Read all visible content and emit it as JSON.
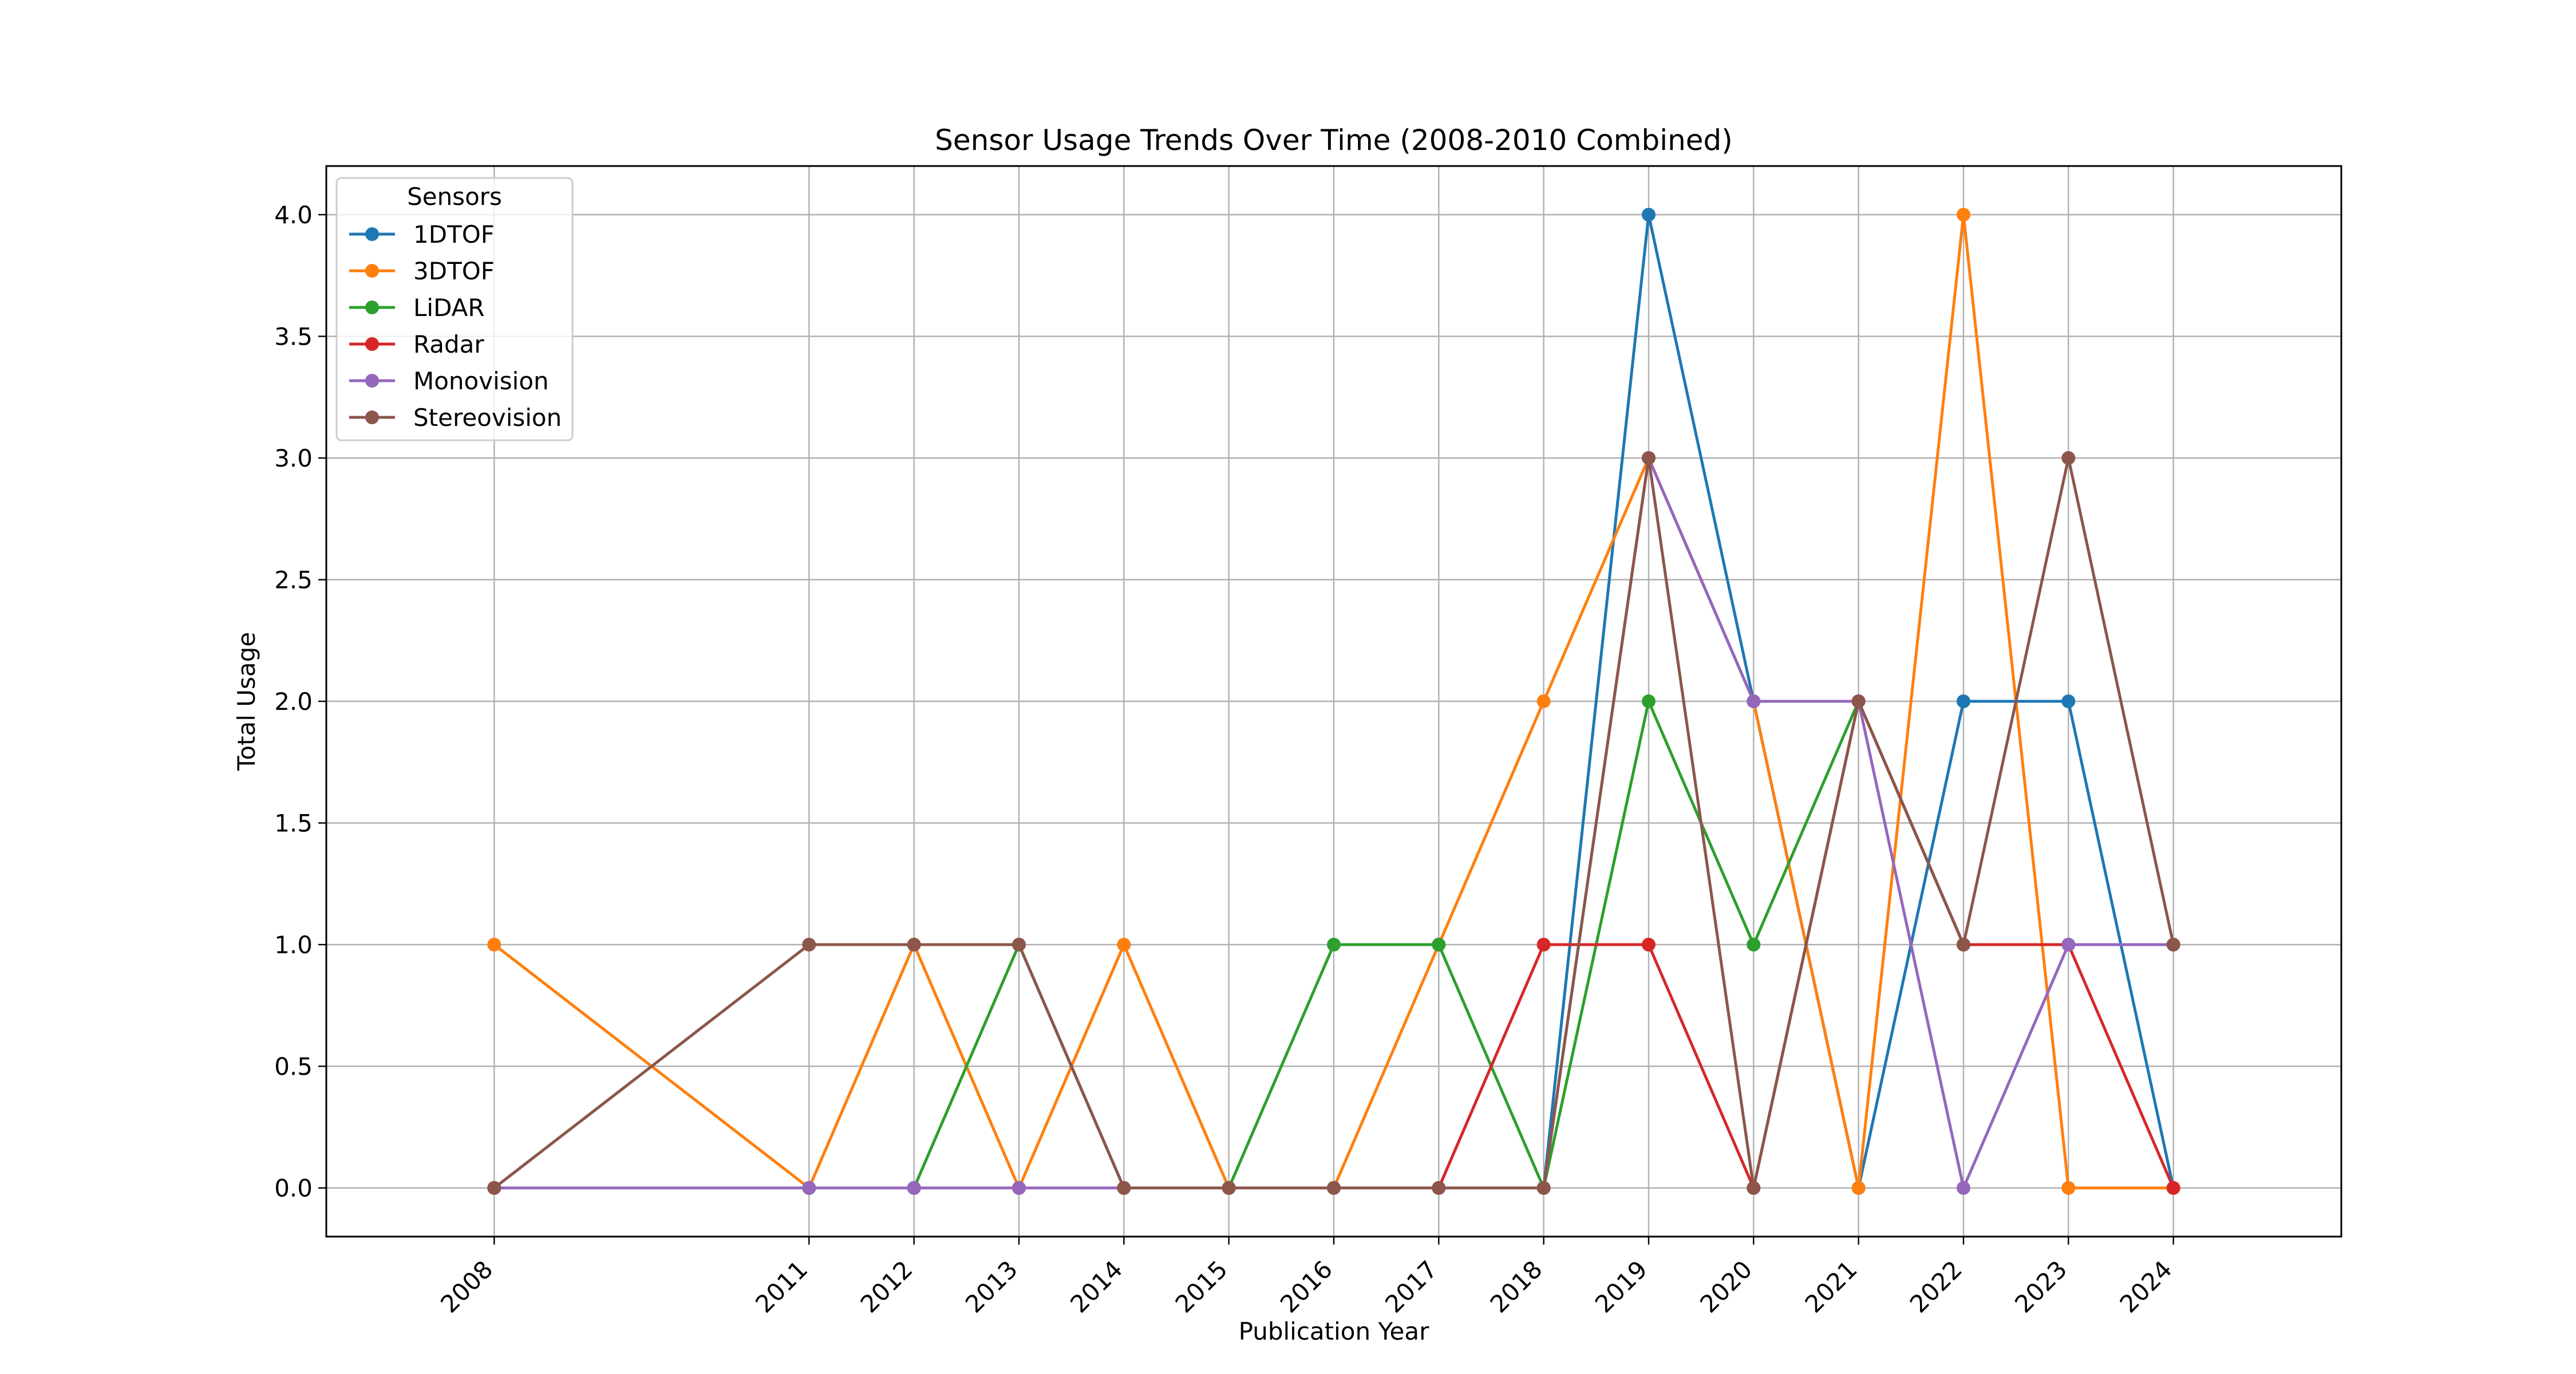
{
  "chart_data": {
    "type": "line",
    "title": "Sensor Usage Trends Over Time (2008-2010 Combined)",
    "xlabel": "Publication Year",
    "ylabel": "Total Usage",
    "x": [
      2008,
      2011,
      2012,
      2013,
      2014,
      2015,
      2016,
      2017,
      2018,
      2019,
      2020,
      2021,
      2022,
      2023,
      2024
    ],
    "xtick_labels": [
      "2008",
      "2011",
      "2012",
      "2013",
      "2014",
      "2015",
      "2016",
      "2017",
      "2018",
      "2019",
      "2020",
      "2021",
      "2022",
      "2023",
      "2024"
    ],
    "xlim": [
      2006.4,
      2025.6
    ],
    "ylim": [
      -0.2,
      4.2
    ],
    "yticks": [
      0.0,
      0.5,
      1.0,
      1.5,
      2.0,
      2.5,
      3.0,
      3.5,
      4.0
    ],
    "ytick_labels": [
      "0.0",
      "0.5",
      "1.0",
      "1.5",
      "2.0",
      "2.5",
      "3.0",
      "3.5",
      "4.0"
    ],
    "grid": true,
    "legend_title": "Sensors",
    "legend_position": "top-left",
    "series": [
      {
        "name": "1DTOF",
        "color": "#1f77b4",
        "values": [
          0,
          0,
          0,
          0,
          0,
          0,
          0,
          0,
          0,
          4,
          2,
          0,
          2,
          2,
          0
        ]
      },
      {
        "name": "3DTOF",
        "color": "#ff7f0e",
        "values": [
          1,
          0,
          1,
          0,
          1,
          0,
          0,
          1,
          2,
          3,
          2,
          0,
          4,
          0,
          0
        ]
      },
      {
        "name": "LiDAR",
        "color": "#2ca02c",
        "values": [
          0,
          0,
          0,
          1,
          0,
          0,
          1,
          1,
          0,
          2,
          1,
          2,
          1,
          1,
          1
        ]
      },
      {
        "name": "Radar",
        "color": "#d62728",
        "values": [
          0,
          0,
          0,
          0,
          0,
          0,
          0,
          0,
          1,
          1,
          0,
          2,
          1,
          1,
          0
        ]
      },
      {
        "name": "Monovision",
        "color": "#9467bd",
        "values": [
          0,
          0,
          0,
          0,
          0,
          0,
          0,
          0,
          0,
          3,
          2,
          2,
          0,
          1,
          1
        ]
      },
      {
        "name": "Stereovision",
        "color": "#8c564b",
        "values": [
          0,
          1,
          1,
          1,
          0,
          0,
          0,
          0,
          0,
          3,
          0,
          2,
          1,
          3,
          1
        ]
      }
    ]
  }
}
